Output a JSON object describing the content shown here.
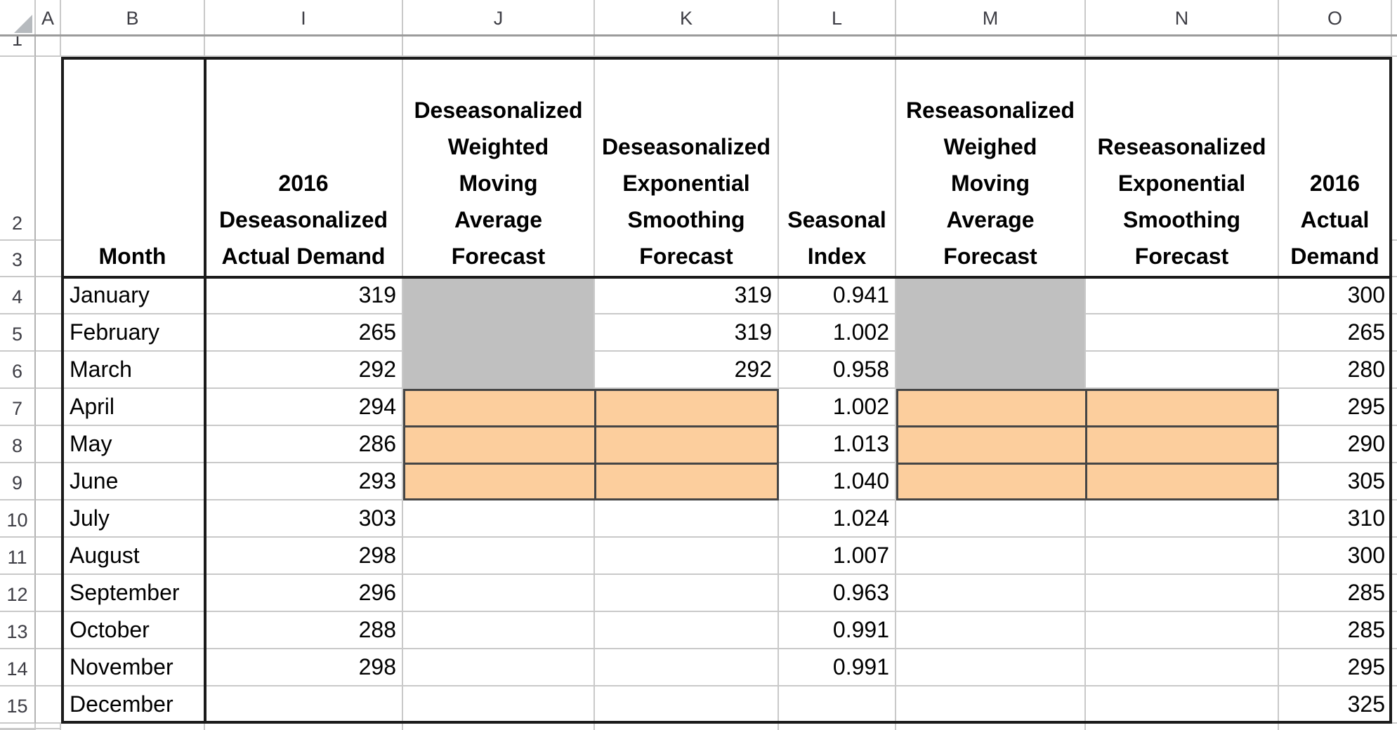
{
  "sheet": {
    "column_letters": [
      "A",
      "B",
      "I",
      "J",
      "K",
      "L",
      "M",
      "N",
      "O"
    ],
    "row_labels": [
      "1",
      "2",
      "3",
      "4",
      "5",
      "6",
      "7",
      "8",
      "9",
      "10",
      "11",
      "12",
      "13",
      "14",
      "15"
    ],
    "headers": {
      "B": "Month",
      "I": "2016\nDeseasonalized\nActual Demand",
      "J": "Deseasonalized\nWeighted\nMoving\nAverage\nForecast",
      "K": "Deseasonalized\nExponential\nSmoothing\nForecast",
      "L": "Seasonal\nIndex",
      "M": "Reseasonalized\nWeighed\nMoving\nAverage\nForecast",
      "N": "Reseasonalized\nExponential\nSmoothing\nForecast",
      "O": "2016\nActual\nDemand"
    },
    "rows": [
      {
        "n": "4",
        "B": "January",
        "I": "319",
        "K": "319",
        "L": "0.941",
        "O": "300"
      },
      {
        "n": "5",
        "B": "February",
        "I": "265",
        "K": "319",
        "L": "1.002",
        "O": "265"
      },
      {
        "n": "6",
        "B": "March",
        "I": "292",
        "K": "292",
        "L": "0.958",
        "O": "280"
      },
      {
        "n": "7",
        "B": "April",
        "I": "294",
        "L": "1.002",
        "O": "295"
      },
      {
        "n": "8",
        "B": "May",
        "I": "286",
        "L": "1.013",
        "O": "290"
      },
      {
        "n": "9",
        "B": "June",
        "I": "293",
        "L": "1.040",
        "O": "305"
      },
      {
        "n": "10",
        "B": "July",
        "I": "303",
        "L": "1.024",
        "O": "310"
      },
      {
        "n": "11",
        "B": "August",
        "I": "298",
        "L": "1.007",
        "O": "300"
      },
      {
        "n": "12",
        "B": "September",
        "I": "296",
        "L": "0.963",
        "O": "285"
      },
      {
        "n": "13",
        "B": "October",
        "I": "288",
        "L": "0.991",
        "O": "285"
      },
      {
        "n": "14",
        "B": "November",
        "I": "298",
        "L": "0.991",
        "O": "295"
      },
      {
        "n": "15",
        "B": "December",
        "O": "325"
      }
    ],
    "highlights": {
      "gray_merged_ranges": [
        "J4:J6",
        "M4:M6"
      ],
      "orange_ranges": [
        "J7:K9",
        "M7:N9"
      ]
    },
    "fills": {
      "gray_fill": "#c0c0c0",
      "orange_fill": "#fcce9d",
      "highlight_border": "#454545",
      "thick_border": "#1b1b1b",
      "gridline": "#c9c9c9"
    }
  }
}
